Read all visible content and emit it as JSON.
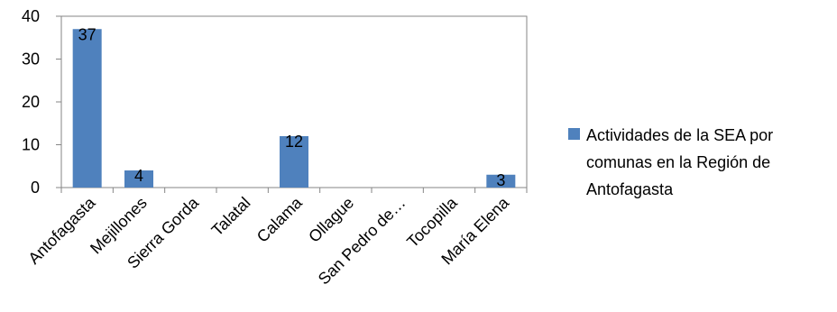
{
  "chart_data": {
    "type": "bar",
    "categories": [
      "Antofagasta",
      "Mejillones",
      "Sierra Gorda",
      "Talatal",
      "Calama",
      "Ollague",
      "San Pedro de…",
      "Tocopilla",
      "María Elena"
    ],
    "series": [
      {
        "name": "Actividades de la SEA por comunas en la Región de Antofagasta",
        "values": [
          37,
          4,
          0,
          0,
          12,
          0,
          0,
          0,
          3
        ],
        "data_labels": [
          "37",
          "4",
          "",
          "",
          "12",
          "",
          "",
          "",
          "3"
        ],
        "color": "#4F81BD"
      }
    ],
    "ylim": [
      0,
      40
    ],
    "yticks": [
      0,
      10,
      20,
      30,
      40
    ],
    "grid": false,
    "legend_position": "right",
    "legend_lines": [
      "Actividades de la SEA por",
      "comunas en la Región de",
      "Antofagasta"
    ]
  }
}
